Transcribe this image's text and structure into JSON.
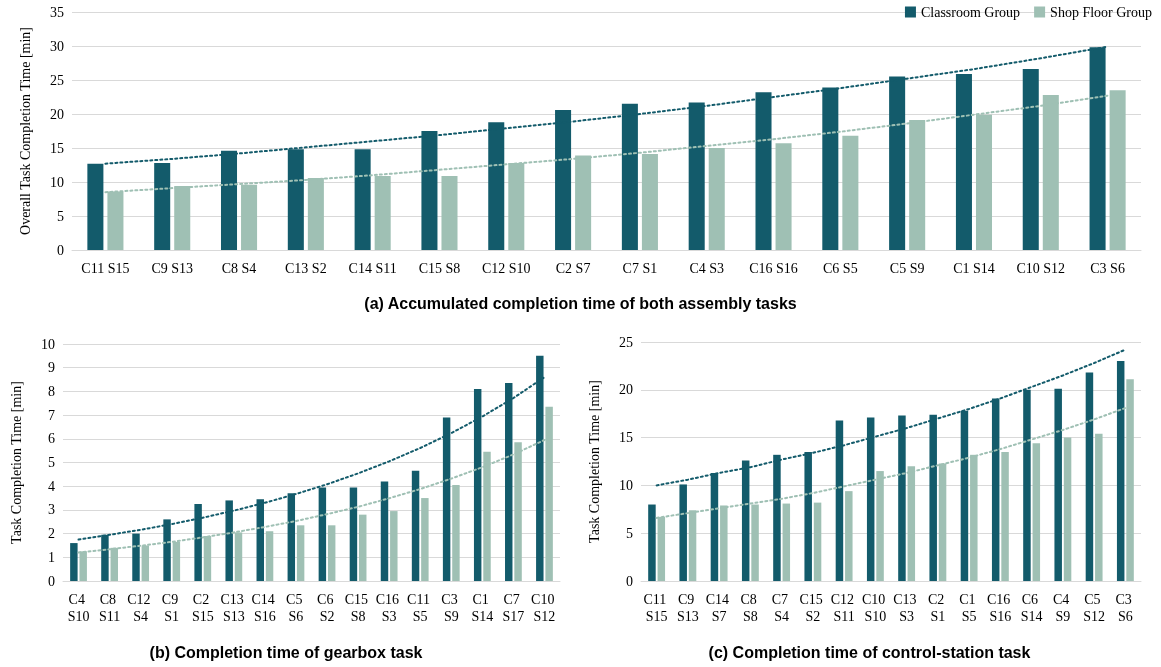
{
  "chart_data": [
    {
      "type": "bar",
      "title": "(a) Accumulated completion time of both assembly tasks",
      "ylabel": "Overall Task Completion Time [min]",
      "categories": [
        "C11 S15",
        "C9 S13",
        "C8 S4",
        "C13 S2",
        "C14 S11",
        "C15 S8",
        "C12 S10",
        "C2 S7",
        "C7 S1",
        "C4 S3",
        "C16 S16",
        "C6 S5",
        "C5 S9",
        "C1 S14",
        "C10 S12",
        "C3 S6"
      ],
      "series": [
        {
          "name": "Classroom Group",
          "color": "#135b6b",
          "values": [
            12.7,
            12.8,
            14.6,
            14.8,
            14.8,
            17.5,
            18.8,
            20.6,
            21.5,
            21.7,
            23.2,
            23.9,
            25.5,
            25.9,
            26.6,
            29.8
          ]
        },
        {
          "name": "Shop Floor Group",
          "color": "#9fc0b4",
          "values": [
            8.6,
            9.4,
            9.6,
            10.6,
            10.9,
            10.9,
            12.8,
            13.9,
            14.1,
            15.0,
            15.7,
            16.8,
            19.1,
            19.9,
            22.8,
            23.5
          ]
        },
        {
          "type": "line",
          "color": "#135b6b",
          "line_style": "dotted",
          "marker": "none",
          "values": [
            12.7,
            13.4,
            14.2,
            15.1,
            16.0,
            16.9,
            17.9,
            18.9,
            20.0,
            21.2,
            22.5,
            23.8,
            25.2,
            26.6,
            28.2,
            29.9
          ]
        },
        {
          "type": "line",
          "color": "#9fc0b4",
          "line_style": "dotted",
          "marker": "none",
          "values": [
            8.5,
            9.1,
            9.7,
            10.3,
            11.0,
            11.8,
            12.6,
            13.4,
            14.3,
            15.3,
            16.3,
            17.4,
            18.6,
            19.9,
            21.2,
            22.7
          ]
        }
      ],
      "ylim": [
        0,
        35
      ],
      "yticks": [
        0,
        5,
        10,
        15,
        20,
        25,
        30,
        35
      ],
      "grid": "y",
      "legend": "top right"
    },
    {
      "type": "bar",
      "title": "(b) Completion time of gearbox task",
      "ylabel": "Task Completion Time [min]",
      "categories": [
        "C4 S10",
        "C8 S11",
        "C12 S4",
        "C9 S1",
        "C2 S15",
        "C13 S13",
        "C14 S16",
        "C5 S6",
        "C6 S2",
        "C15 S8",
        "C16 S3",
        "C11 S5",
        "C3 S9",
        "C1 S14",
        "C7 S17",
        "C10 S12"
      ],
      "series": [
        {
          "color": "#135b6b",
          "values": [
            1.6,
            1.95,
            2.0,
            2.6,
            3.25,
            3.4,
            3.45,
            3.7,
            3.95,
            3.95,
            4.2,
            4.65,
            6.9,
            8.1,
            8.35,
            9.5
          ]
        },
        {
          "color": "#9fc0b4",
          "values": [
            1.25,
            1.4,
            1.5,
            1.65,
            1.9,
            2.05,
            2.1,
            2.35,
            2.35,
            2.8,
            2.95,
            3.5,
            4.05,
            5.45,
            5.85,
            7.35
          ]
        },
        {
          "type": "line",
          "color": "#135b6b",
          "line_style": "dotted",
          "marker": "none",
          "values": [
            1.75,
            1.95,
            2.16,
            2.4,
            2.67,
            2.97,
            3.3,
            3.67,
            4.08,
            4.54,
            5.05,
            5.61,
            6.24,
            6.94,
            7.72,
            8.6
          ]
        },
        {
          "type": "line",
          "color": "#9fc0b4",
          "line_style": "dotted",
          "marker": "none",
          "values": [
            1.2,
            1.34,
            1.49,
            1.65,
            1.84,
            2.05,
            2.28,
            2.53,
            2.82,
            3.13,
            3.49,
            3.88,
            4.32,
            4.8,
            5.34,
            5.95
          ]
        }
      ],
      "ylim": [
        0,
        10
      ],
      "yticks": [
        0,
        1,
        2,
        3,
        4,
        5,
        6,
        7,
        8,
        9,
        10
      ],
      "grid": "y"
    },
    {
      "type": "bar",
      "title": "(c) Completion time of control-station task",
      "ylabel": "Task Completion Time [min]",
      "categories": [
        "C11 S15",
        "C9 S13",
        "C14 S7",
        "C8 S8",
        "C7 S4",
        "C15 S2",
        "C12 S11",
        "C10 S10",
        "C13 S3",
        "C2 S1",
        "C1 S5",
        "C16 S16",
        "C6 S14",
        "C4 S9",
        "C5 S12",
        "C3 S6"
      ],
      "series": [
        {
          "color": "#135b6b",
          "values": [
            8.0,
            10.1,
            11.3,
            12.6,
            13.2,
            13.5,
            16.8,
            17.1,
            17.3,
            17.4,
            17.8,
            19.1,
            20.0,
            20.1,
            21.8,
            23.0
          ]
        },
        {
          "color": "#9fc0b4",
          "values": [
            6.7,
            7.4,
            7.9,
            8.0,
            8.1,
            8.2,
            9.4,
            11.5,
            12.0,
            12.3,
            13.2,
            13.5,
            14.4,
            15.0,
            15.4,
            21.1
          ]
        },
        {
          "type": "line",
          "color": "#135b6b",
          "line_style": "dotted",
          "marker": "none",
          "values": [
            10.0,
            10.6,
            11.3,
            11.9,
            12.7,
            13.4,
            14.2,
            15.1,
            16.0,
            17.0,
            18.0,
            19.1,
            20.3,
            21.5,
            22.8,
            24.2
          ]
        },
        {
          "type": "line",
          "color": "#9fc0b4",
          "line_style": "dotted",
          "marker": "none",
          "values": [
            6.6,
            7.1,
            7.6,
            8.1,
            8.6,
            9.2,
            9.9,
            10.6,
            11.3,
            12.1,
            12.9,
            13.8,
            14.8,
            15.8,
            16.9,
            18.1
          ]
        }
      ],
      "ylim": [
        0,
        25
      ],
      "yticks": [
        0,
        5,
        10,
        15,
        20,
        25
      ],
      "grid": "y"
    }
  ]
}
